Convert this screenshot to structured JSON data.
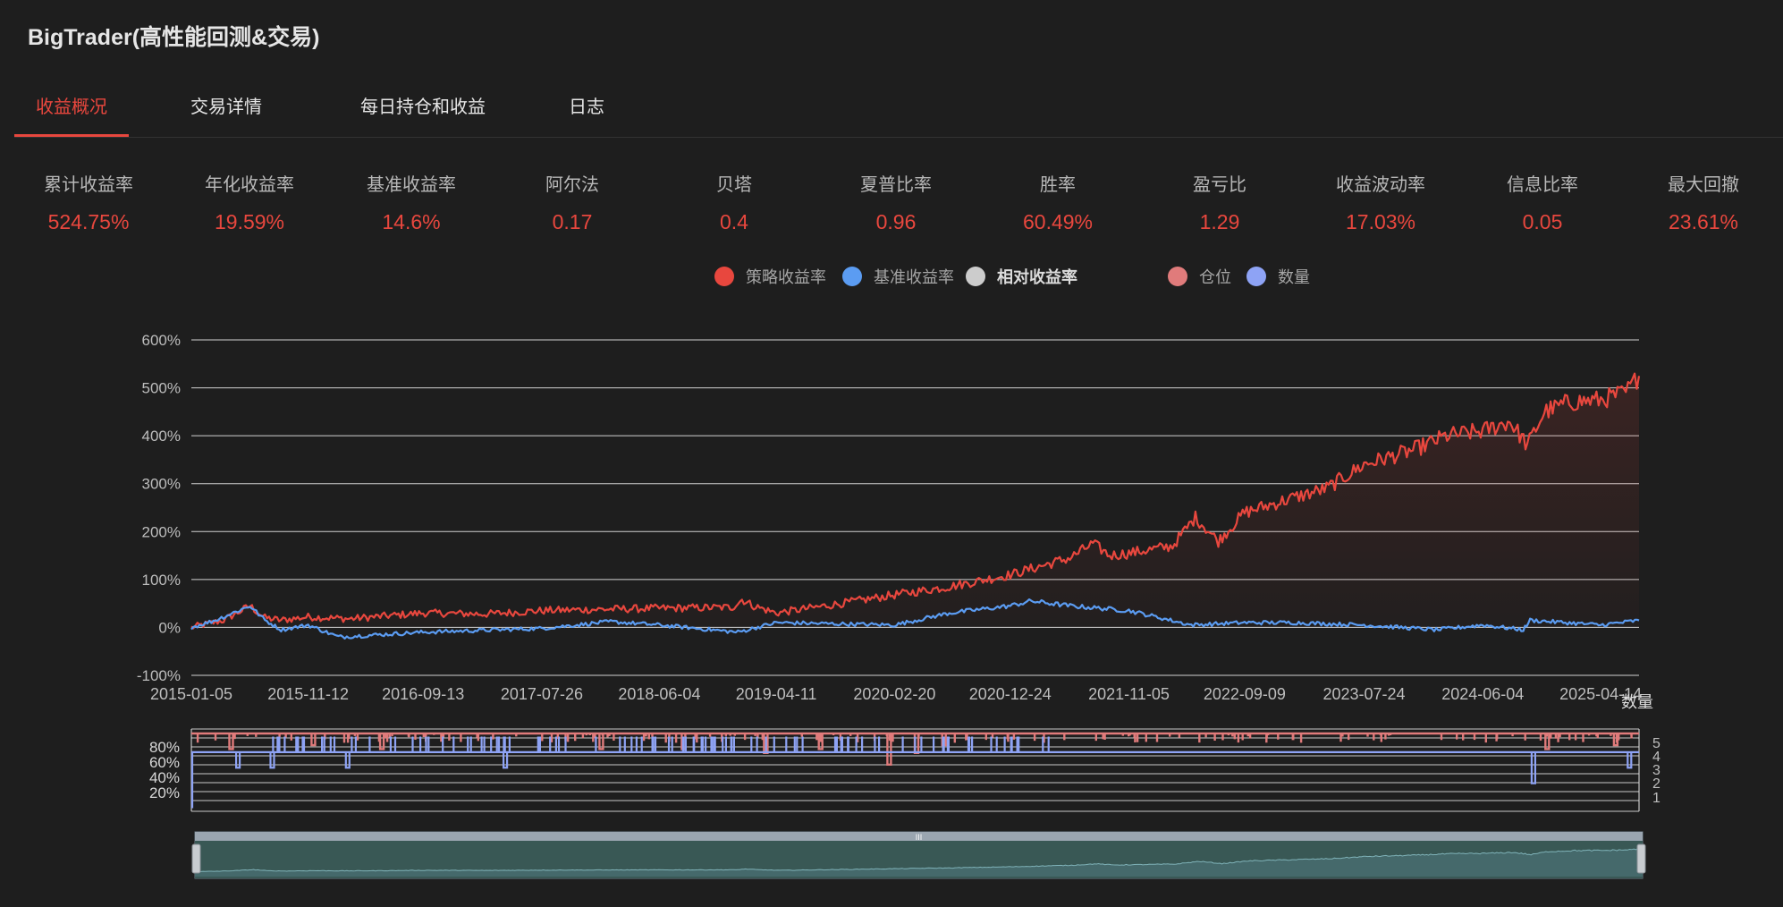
{
  "app": {
    "title": "BigTrader(高性能回测&交易)"
  },
  "tabs": [
    {
      "label": "收益概况",
      "active": true
    },
    {
      "label": "交易详情",
      "active": false
    },
    {
      "label": "每日持仓和收益",
      "active": false
    },
    {
      "label": "日志",
      "active": false
    }
  ],
  "metrics": [
    {
      "label": "累计收益率",
      "value": "524.75%"
    },
    {
      "label": "年化收益率",
      "value": "19.59%"
    },
    {
      "label": "基准收益率",
      "value": "14.6%"
    },
    {
      "label": "阿尔法",
      "value": "0.17"
    },
    {
      "label": "贝塔",
      "value": "0.4"
    },
    {
      "label": "夏普比率",
      "value": "0.96"
    },
    {
      "label": "胜率",
      "value": "60.49%"
    },
    {
      "label": "盈亏比",
      "value": "1.29"
    },
    {
      "label": "收益波动率",
      "value": "17.03%"
    },
    {
      "label": "信息比率",
      "value": "0.05"
    },
    {
      "label": "最大回撤",
      "value": "23.61%"
    }
  ],
  "colors": {
    "accent": "#e8473e",
    "strategy": "#e8473e",
    "benchmark": "#5b9cf2",
    "relative": "#cccccc",
    "position": "#e07b7b",
    "quantity": "#8ea3f5",
    "background": "#1e1e1e"
  },
  "chart_data": [
    {
      "type": "line",
      "series": [
        {
          "name": "策略收益率",
          "color": "#e8473e",
          "area_fill": true,
          "points": [
            [
              "2015-01-05",
              0
            ],
            [
              "2015-04-01",
              15
            ],
            [
              "2015-06-10",
              45
            ],
            [
              "2015-07-20",
              20
            ],
            [
              "2015-09-01",
              15
            ],
            [
              "2015-11-12",
              22
            ],
            [
              "2016-03-01",
              18
            ],
            [
              "2016-09-13",
              30
            ],
            [
              "2017-03-01",
              28
            ],
            [
              "2017-07-26",
              35
            ],
            [
              "2018-01-15",
              38
            ],
            [
              "2018-06-04",
              40
            ],
            [
              "2018-12-15",
              42
            ],
            [
              "2019-01-10",
              58
            ],
            [
              "2019-02-10",
              45
            ],
            [
              "2019-04-11",
              30
            ],
            [
              "2019-10-01",
              50
            ],
            [
              "2020-02-20",
              68
            ],
            [
              "2020-07-15",
              85
            ],
            [
              "2020-12-24",
              110
            ],
            [
              "2021-06-01",
              145
            ],
            [
              "2021-08-01",
              175
            ],
            [
              "2021-09-15",
              150
            ],
            [
              "2021-11-05",
              155
            ],
            [
              "2022-03-01",
              170
            ],
            [
              "2022-05-01",
              230
            ],
            [
              "2022-07-01",
              180
            ],
            [
              "2022-09-09",
              240
            ],
            [
              "2023-01-15",
              270
            ],
            [
              "2023-04-15",
              290
            ],
            [
              "2023-07-24",
              340
            ],
            [
              "2023-12-01",
              370
            ],
            [
              "2024-03-01",
              400
            ],
            [
              "2024-06-04",
              410
            ],
            [
              "2024-08-15",
              430
            ],
            [
              "2024-10-01",
              380
            ],
            [
              "2024-11-15",
              450
            ],
            [
              "2025-01-20",
              470
            ],
            [
              "2025-04-14",
              475
            ],
            [
              "2025-06-20",
              490
            ],
            [
              "2025-07-25",
              524.75
            ]
          ]
        },
        {
          "name": "基准收益率",
          "color": "#5b9cf2",
          "area_fill": false,
          "points": [
            [
              "2015-01-05",
              0
            ],
            [
              "2015-03-10",
              15
            ],
            [
              "2015-06-10",
              45
            ],
            [
              "2015-07-20",
              15
            ],
            [
              "2015-09-01",
              -5
            ],
            [
              "2015-11-12",
              5
            ],
            [
              "2016-02-01",
              -20
            ],
            [
              "2016-09-13",
              -10
            ],
            [
              "2017-07-26",
              -2
            ],
            [
              "2018-01-25",
              12
            ],
            [
              "2018-06-04",
              5
            ],
            [
              "2018-12-30",
              -10
            ],
            [
              "2019-04-11",
              10
            ],
            [
              "2020-02-20",
              5
            ],
            [
              "2020-07-15",
              30
            ],
            [
              "2020-12-24",
              45
            ],
            [
              "2021-02-18",
              55
            ],
            [
              "2021-06-01",
              45
            ],
            [
              "2021-11-05",
              35
            ],
            [
              "2022-04-20",
              5
            ],
            [
              "2022-09-09",
              10
            ],
            [
              "2023-01-15",
              10
            ],
            [
              "2023-07-24",
              5
            ],
            [
              "2024-02-01",
              -5
            ],
            [
              "2024-06-04",
              5
            ],
            [
              "2024-09-20",
              -5
            ],
            [
              "2024-10-08",
              15
            ],
            [
              "2025-04-14",
              5
            ],
            [
              "2025-07-25",
              14.6
            ]
          ]
        }
      ],
      "legend": [
        {
          "name": "策略收益率",
          "color": "#e8473e"
        },
        {
          "name": "基准收益率",
          "color": "#5b9cf2"
        },
        {
          "name": "相对收益率",
          "color": "#cccccc"
        },
        {
          "name": "仓位",
          "color": "#e07b7b"
        },
        {
          "name": "数量",
          "color": "#8ea3f5"
        }
      ],
      "legend_placement": "top-center",
      "x_tick_labels": [
        "2015-01-05",
        "2015-11-12",
        "2016-09-13",
        "2017-07-26",
        "2018-06-04",
        "2019-04-11",
        "2020-02-20",
        "2020-12-24",
        "2021-11-05",
        "2022-09-09",
        "2023-07-24",
        "2024-06-04",
        "2025-04-14"
      ],
      "y_tick_labels": [
        "-100%",
        "0%",
        "100%",
        "200%",
        "300%",
        "400%",
        "500%",
        "600%"
      ],
      "ylim": [
        -100,
        600
      ],
      "grid": true
    },
    {
      "type": "line",
      "series": [
        {
          "name": "仓位",
          "color": "#e07b7b",
          "typical": 100,
          "dips": [
            [
              2015.3,
              80
            ],
            [
              2015.9,
              85
            ],
            [
              2016.4,
              80
            ],
            [
              2018.0,
              80
            ],
            [
              2018.6,
              80
            ],
            [
              2019.2,
              75
            ],
            [
              2019.6,
              80
            ],
            [
              2020.1,
              60
            ],
            [
              2020.3,
              75
            ],
            [
              2020.5,
              85
            ],
            [
              2024.9,
              80
            ],
            [
              2025.4,
              85
            ]
          ]
        },
        {
          "name": "数量",
          "color": "#8ea3f5",
          "typical": 4,
          "dips": [
            [
              2015.35,
              3
            ],
            [
              2015.6,
              3
            ],
            [
              2016.15,
              3
            ],
            [
              2017.3,
              3
            ],
            [
              2018.9,
              4
            ],
            [
              2019.5,
              4
            ],
            [
              2021.0,
              4
            ],
            [
              2022.0,
              4
            ],
            [
              2024.8,
              2
            ],
            [
              2025.5,
              3
            ]
          ]
        }
      ],
      "left_axis_labels": [
        "20%",
        "40%",
        "60%",
        "80%"
      ],
      "right_axis_labels": [
        "1",
        "2",
        "3",
        "4",
        "5"
      ],
      "right_axis_title": "数量",
      "grid": true
    }
  ],
  "data_zoom": {
    "range": [
      0,
      100
    ],
    "handle_label": "III"
  }
}
